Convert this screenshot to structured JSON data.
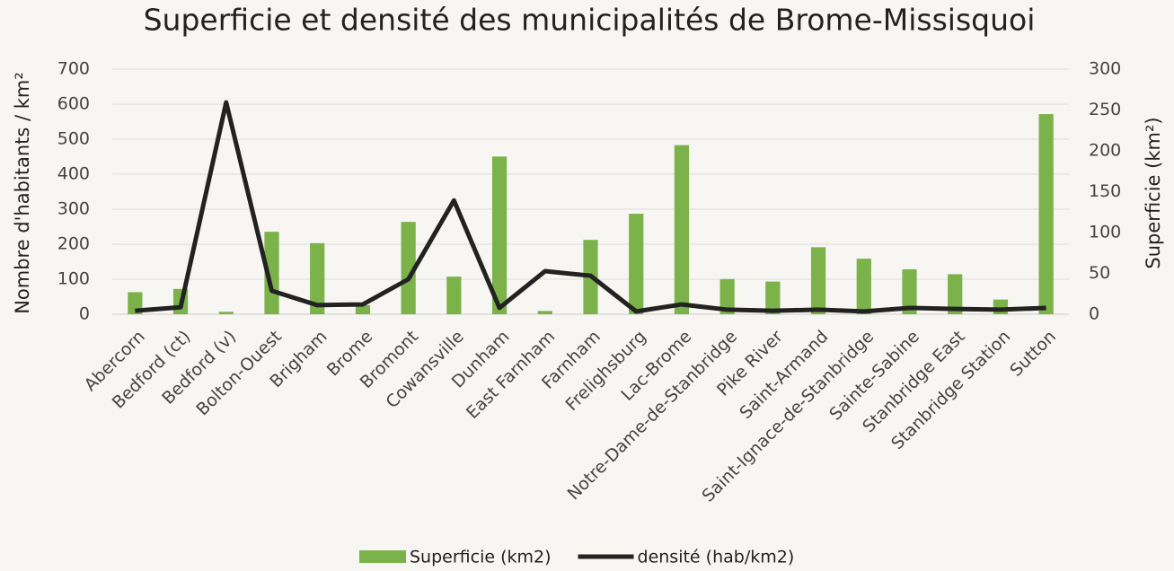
{
  "chart_data": {
    "type": "bar_line",
    "title": "Superficie et densité des municipalités de Brome-Missisquoi",
    "y_label": "Nombre d'habitants / km²",
    "y2_label": "Superficie (km²)",
    "categories": [
      "Abercorn",
      "Bedford (ct)",
      "Bedford (v)",
      "Bolton-Ouest",
      "Brigham",
      "Brome",
      "Bromont",
      "Cowansville",
      "Dunham",
      "East Farnham",
      "Farnham",
      "Frelighsburg",
      "Lac-Brome",
      "Notre-Dame-de-Stanbridge",
      "Pike River",
      "Saint-Armand",
      "Saint-Ignace-de-Stanbridge",
      "Sainte-Sabine",
      "Stanbridge East",
      "Stanbridge Station",
      "Sutton"
    ],
    "series": [
      {
        "name": "Superficie (km2)",
        "type": "bar",
        "axis": "y2",
        "color": "#7cb24a",
        "values": [
          27,
          31,
          3,
          101,
          87,
          11,
          113,
          46,
          193,
          4,
          91,
          123,
          207,
          43,
          40,
          82,
          68,
          55,
          49,
          18,
          245
        ]
      },
      {
        "name": "densité (hab/km2)",
        "type": "line",
        "axis": "y",
        "color": "#222222",
        "values": [
          10,
          20,
          605,
          67,
          26,
          28,
          100,
          325,
          18,
          123,
          110,
          8,
          28,
          13,
          10,
          13,
          8,
          18,
          15,
          13,
          18
        ]
      }
    ],
    "ylim": [
      0,
      700
    ],
    "yticks": [
      0,
      100,
      200,
      300,
      400,
      500,
      600,
      700
    ],
    "y2lim": [
      0,
      300
    ],
    "y2ticks": [
      0,
      50,
      100,
      150,
      200,
      250,
      300
    ],
    "grid": true,
    "legend": "bottom"
  }
}
